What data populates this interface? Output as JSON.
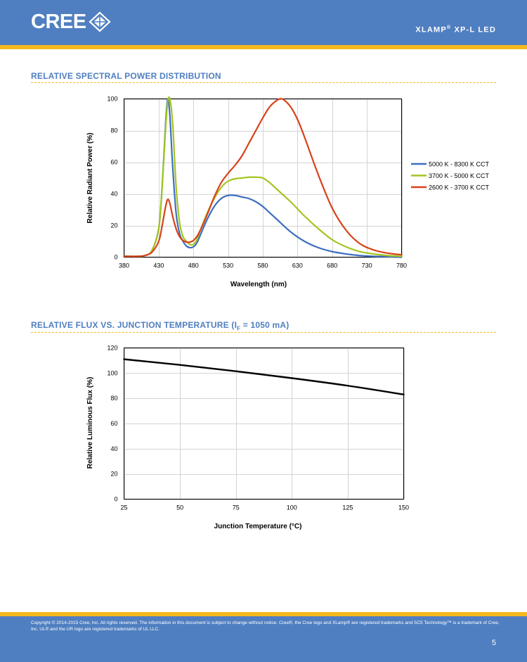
{
  "header": {
    "logo_text": "CREE",
    "product_title": "XLAMP",
    "product_title_reg": "®",
    "product_title_rest": " XP-L LED"
  },
  "section1": {
    "title": "RELATIVE SPECTRAL POWER DISTRIBUTION"
  },
  "section2": {
    "title_pre": "RELATIVE FLUX VS. JUNCTION TEMPERATURE (I",
    "title_sub": "F",
    "title_post": " = 1050 mA)"
  },
  "colors": {
    "header_blue": "#4f7fc1",
    "accent_yellow": "#f5b81c",
    "series_blue": "#3f6fbf",
    "series_green": "#a3c520",
    "series_red": "#d8411a"
  },
  "chart_data": [
    {
      "type": "line",
      "xlabel": "Wavelength (nm)",
      "ylabel": "Relative Radiant Power (%)",
      "xlim": [
        380,
        780
      ],
      "ylim": [
        0,
        100
      ],
      "xticks": [
        380,
        430,
        480,
        530,
        580,
        630,
        680,
        730,
        780
      ],
      "yticks": [
        0,
        20,
        40,
        60,
        80,
        100
      ],
      "grid": true,
      "legend": "right",
      "series": [
        {
          "name": "5000 K - 8300 K CCT",
          "color": "#3f6fbf",
          "x": [
            380,
            400,
            410,
            420,
            430,
            435,
            440,
            443,
            446,
            450,
            455,
            460,
            465,
            470,
            475,
            480,
            485,
            490,
            500,
            510,
            520,
            530,
            540,
            550,
            560,
            570,
            580,
            590,
            600,
            620,
            640,
            660,
            680,
            700,
            720,
            740,
            760,
            780
          ],
          "y": [
            0.5,
            0.5,
            1,
            4,
            18,
            45,
            85,
            100,
            90,
            58,
            28,
            15,
            10,
            7,
            6,
            6.5,
            9,
            14,
            24,
            32,
            37,
            39,
            39,
            38,
            37,
            35,
            32,
            28,
            24,
            16,
            10,
            6,
            3.5,
            2,
            1,
            0.5,
            0.3,
            0
          ]
        },
        {
          "name": "3700 K - 5000 K CCT",
          "color": "#a3c520",
          "x": [
            380,
            400,
            410,
            420,
            430,
            435,
            440,
            443,
            446,
            450,
            455,
            460,
            465,
            470,
            475,
            480,
            485,
            490,
            500,
            510,
            520,
            530,
            540,
            550,
            560,
            570,
            580,
            590,
            600,
            620,
            640,
            660,
            680,
            700,
            720,
            740,
            760,
            780
          ],
          "y": [
            0.5,
            0.5,
            1,
            4,
            18,
            45,
            82,
            98,
            100,
            85,
            45,
            22,
            13,
            10,
            8,
            8,
            11,
            17,
            28,
            37,
            44,
            48,
            49.5,
            50,
            50.5,
            50.5,
            50,
            47,
            43,
            35,
            26,
            18,
            11,
            6.5,
            3.5,
            2,
            1,
            0.5
          ]
        },
        {
          "name": "2600 K - 3700 K CCT",
          "color": "#d8411a",
          "x": [
            380,
            400,
            410,
            420,
            430,
            435,
            440,
            443,
            446,
            450,
            455,
            460,
            465,
            470,
            475,
            480,
            485,
            490,
            500,
            510,
            520,
            530,
            540,
            550,
            560,
            570,
            580,
            590,
            600,
            605,
            610,
            620,
            630,
            640,
            660,
            680,
            700,
            720,
            740,
            760,
            780
          ],
          "y": [
            0.5,
            0.5,
            1,
            3,
            10,
            20,
            32,
            36.5,
            34,
            26,
            18,
            13,
            10.5,
            9.5,
            9.5,
            10.5,
            13,
            17,
            27,
            38,
            47,
            53,
            58,
            64,
            72,
            80,
            88,
            95,
            99,
            100,
            99.5,
            95,
            87,
            76,
            52,
            31,
            17,
            8.5,
            4.5,
            2.5,
            1.5
          ]
        }
      ]
    },
    {
      "type": "line",
      "xlabel": "Junction Temperature (°C)",
      "ylabel": "Relative Luminous Flux (%)",
      "xlim": [
        25,
        150
      ],
      "ylim": [
        0,
        120
      ],
      "xticks": [
        25,
        50,
        75,
        100,
        125,
        150
      ],
      "yticks": [
        0,
        20,
        40,
        60,
        80,
        100,
        120
      ],
      "grid": true,
      "series": [
        {
          "color": "#000000",
          "x": [
            25,
            50,
            75,
            100,
            125,
            150
          ],
          "y": [
            111,
            106.5,
            101.5,
            96,
            90,
            83
          ]
        }
      ]
    }
  ],
  "footer": {
    "copyright": "Copyright © 2014-2015 Cree, Inc. All rights reserved. The information in this document is subject to change without notice. Cree®, the Cree logo and XLamp® are registered trademarks and SC5 Technology™ is a trademark of Cree, Inc. UL® and the UR logo are registered trademarks of UL LLC.",
    "page_number": "5"
  }
}
